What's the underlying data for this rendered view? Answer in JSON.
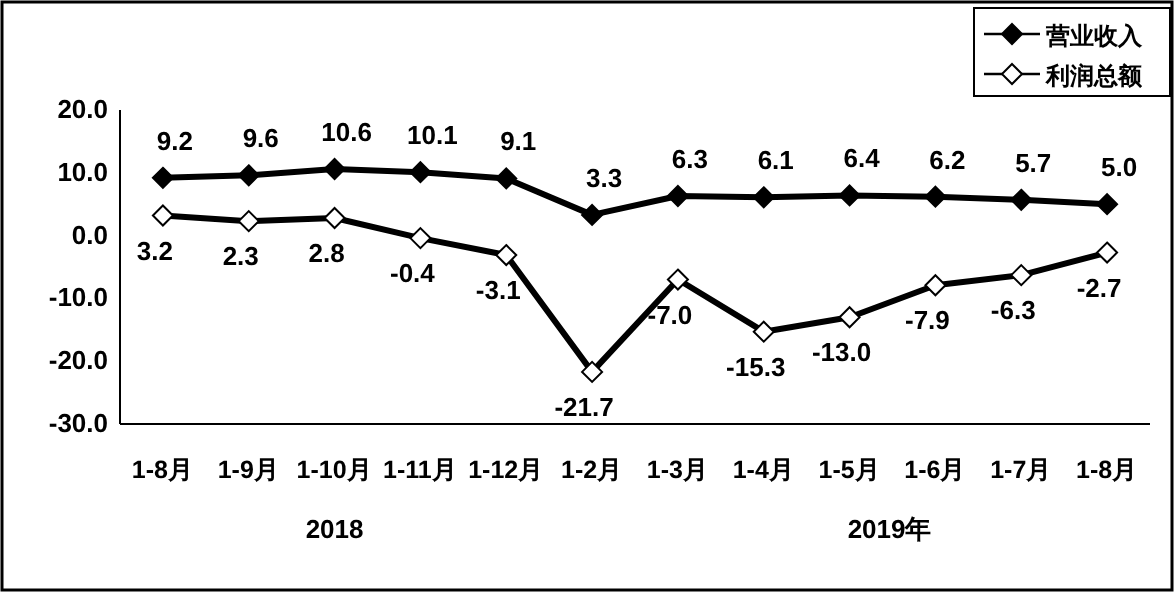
{
  "chart_data": {
    "type": "line",
    "categories": [
      "1-8月",
      "1-9月",
      "1-10月",
      "1-11月",
      "1-12月",
      "1-2月",
      "1-3月",
      "1-4月",
      "1-5月",
      "1-6月",
      "1-7月",
      "1-8月"
    ],
    "series": [
      {
        "name": "营业收入",
        "color": "#000000",
        "values": [
          9.2,
          9.6,
          10.6,
          10.1,
          9.1,
          3.3,
          6.3,
          6.1,
          6.4,
          6.2,
          5.7,
          5.0
        ],
        "value_labels": [
          "9.2",
          "9.6",
          "10.6",
          "10.1",
          "9.1",
          "3.3",
          "6.3",
          "6.1",
          "6.4",
          "6.2",
          "5.7",
          "5.0"
        ]
      },
      {
        "name": "利润总额",
        "color": "#000000",
        "values": [
          3.2,
          2.3,
          2.8,
          -0.4,
          -3.1,
          -21.7,
          -7.0,
          -15.3,
          -13.0,
          -7.9,
          -6.3,
          -2.7
        ],
        "value_labels": [
          "3.2",
          "2.3",
          "2.8",
          "-0.4",
          "-3.1",
          "-21.7",
          "-7.0",
          "-15.3",
          "-13.0",
          "-7.9",
          "-6.3",
          "-2.7"
        ]
      }
    ],
    "ylim": [
      -30,
      20
    ],
    "yticks": [
      {
        "value": -30,
        "label": "-30.0"
      },
      {
        "value": -20,
        "label": "-20.0"
      },
      {
        "value": -10,
        "label": "-10.0"
      },
      {
        "value": 0,
        "label": "0.0"
      },
      {
        "value": 10,
        "label": "10.0"
      },
      {
        "value": 20,
        "label": "20.0"
      }
    ],
    "annotations": [
      "2018",
      "2019年"
    ],
    "legend": "top right",
    "marker": "diamond",
    "line_style": "solid",
    "grid": false
  }
}
